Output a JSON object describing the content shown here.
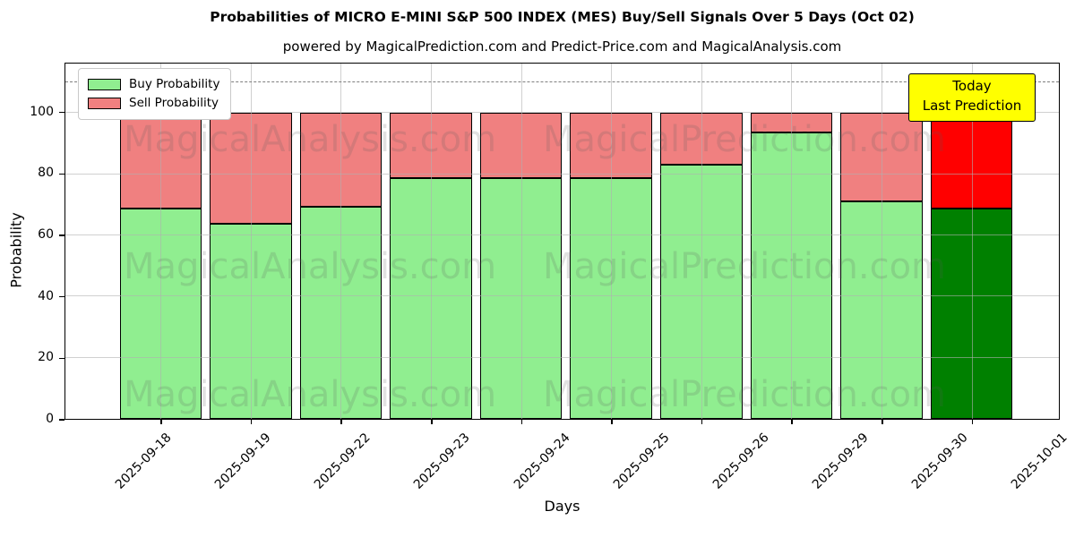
{
  "chart_data": {
    "type": "bar",
    "stacked": true,
    "title": "Probabilities of MICRO E-MINI S&P 500 INDEX (MES) Buy/Sell Signals Over 5 Days (Oct 02)",
    "subtitle": "powered by MagicalPrediction.com and Predict-Price.com and MagicalAnalysis.com",
    "xlabel": "Days",
    "ylabel": "Probability",
    "categories": [
      "2025-09-18",
      "2025-09-19",
      "2025-09-22",
      "2025-09-23",
      "2025-09-24",
      "2025-09-25",
      "2025-09-26",
      "2025-09-29",
      "2025-09-30",
      "2025-10-01"
    ],
    "series": [
      {
        "name": "Buy Probability",
        "color": "#90EE90",
        "last_bar_color": "#008000",
        "values": [
          68.75,
          63.75,
          69.4,
          78.75,
          78.75,
          78.75,
          83.1,
          93.75,
          71.25,
          68.75
        ]
      },
      {
        "name": "Sell Probability",
        "color": "#F08080",
        "last_bar_color": "#FF0000",
        "values": [
          31.25,
          36.25,
          30.6,
          21.25,
          21.25,
          21.25,
          16.9,
          6.25,
          28.75,
          31.25
        ]
      }
    ],
    "ylim": [
      0,
      116.2
    ],
    "yticks": [
      0,
      20,
      40,
      60,
      80,
      100
    ],
    "grid": true,
    "grid_color": "#b0b0b0",
    "bar_edge_color": "#000000",
    "dashed_line_y": 110,
    "dashed_line_color": "#7f7f7f",
    "legend_position": "upper-left"
  },
  "annotation": {
    "line1": "Today",
    "line2": "Last Prediction",
    "bg_color": "#FFFF00"
  },
  "watermarks": [
    "MagicalAnalysis.com",
    "MagicalPrediction.com"
  ]
}
